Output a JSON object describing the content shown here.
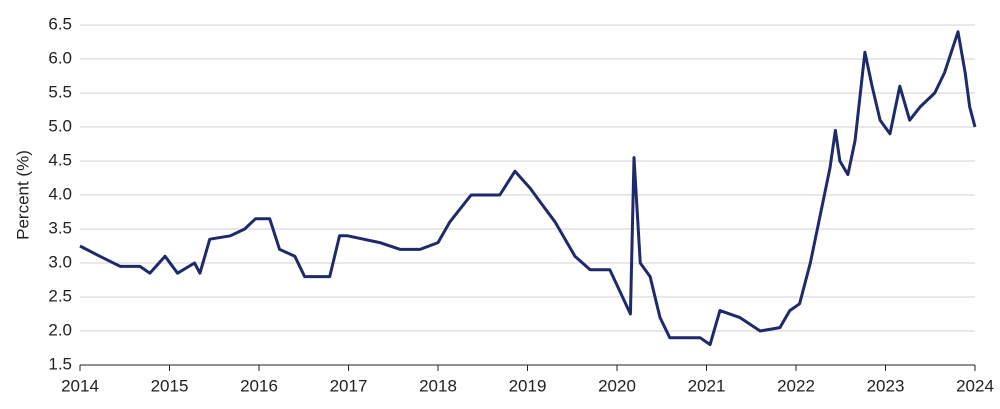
{
  "chart_data": {
    "type": "line",
    "ylabel": "Percent (%)",
    "x": [
      2014.0,
      2014.22,
      2014.45,
      2014.67,
      2014.78,
      2014.95,
      2015.09,
      2015.28,
      2015.34,
      2015.45,
      2015.68,
      2015.84,
      2015.96,
      2016.12,
      2016.23,
      2016.4,
      2016.51,
      2016.79,
      2016.9,
      2016.99,
      2017.35,
      2017.58,
      2017.8,
      2018.0,
      2018.13,
      2018.25,
      2018.37,
      2018.69,
      2018.86,
      2019.03,
      2019.14,
      2019.31,
      2019.53,
      2019.7,
      2019.92,
      2020.15,
      2020.19,
      2020.26,
      2020.37,
      2020.48,
      2020.59,
      2020.93,
      2021.04,
      2021.15,
      2021.37,
      2021.6,
      2021.82,
      2021.93,
      2022.04,
      2022.16,
      2022.27,
      2022.38,
      2022.44,
      2022.49,
      2022.58,
      2022.66,
      2022.77,
      2022.85,
      2022.94,
      2023.05,
      2023.16,
      2023.27,
      2023.39,
      2023.55,
      2023.66,
      2023.81,
      2023.89,
      2023.94,
      2024.0
    ],
    "series": [
      {
        "color": "#1f2a6b",
        "values": [
          3.25,
          3.1,
          2.95,
          2.95,
          2.85,
          3.1,
          2.85,
          3.0,
          2.85,
          3.35,
          3.4,
          3.5,
          3.65,
          3.65,
          3.2,
          3.1,
          2.8,
          2.8,
          3.4,
          3.4,
          3.3,
          3.2,
          3.2,
          3.3,
          3.6,
          3.8,
          4.0,
          4.0,
          4.35,
          4.1,
          3.9,
          3.6,
          3.1,
          2.9,
          2.9,
          2.25,
          4.55,
          3.0,
          2.8,
          2.2,
          1.9,
          1.9,
          1.8,
          2.3,
          2.2,
          2.0,
          2.05,
          2.3,
          2.4,
          3.0,
          3.7,
          4.4,
          4.95,
          4.5,
          4.3,
          4.8,
          6.1,
          5.6,
          5.1,
          4.9,
          5.6,
          5.1,
          5.3,
          5.5,
          5.8,
          6.4,
          5.8,
          5.3,
          5.0
        ]
      }
    ],
    "xlim": [
      2014,
      2024
    ],
    "xticks": [
      2014,
      2015,
      2016,
      2017,
      2018,
      2019,
      2020,
      2021,
      2022,
      2023,
      2024
    ],
    "ylim": [
      1.5,
      6.5
    ],
    "yticks": [
      1.5,
      {
        "value": 2,
        "label": "2.0"
      },
      2.5,
      {
        "value": 3,
        "label": "3.0"
      },
      3.5,
      {
        "value": 4,
        "label": "4.0"
      },
      4.5,
      {
        "value": 5,
        "label": "5.0"
      },
      5.5,
      {
        "value": 6,
        "label": "6.0"
      },
      6.5
    ],
    "grid": true
  }
}
